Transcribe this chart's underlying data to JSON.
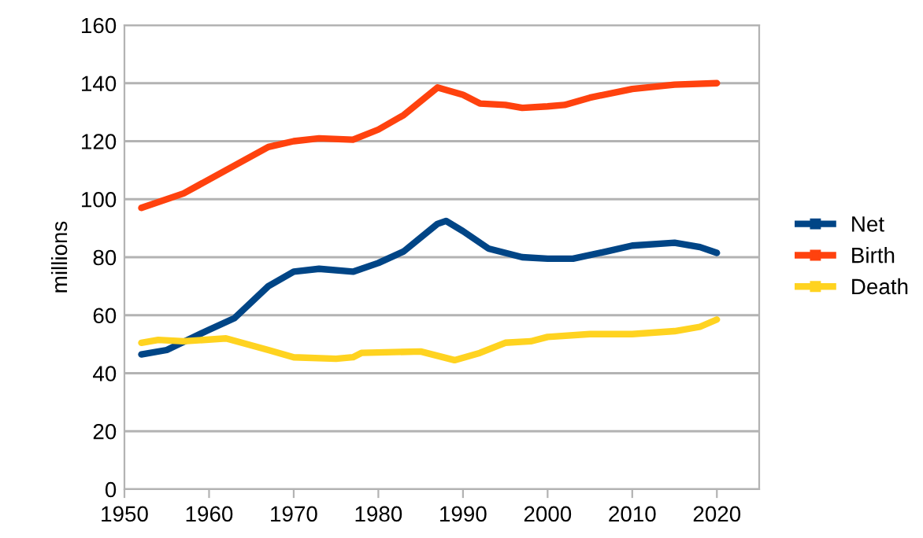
{
  "chart_data": {
    "type": "line",
    "ylabel": "millions",
    "xlim": [
      1950,
      2025
    ],
    "xticks": [
      1950,
      1960,
      1970,
      1980,
      1990,
      2000,
      2010,
      2020
    ],
    "ylim": [
      0,
      160
    ],
    "yticks": [
      0,
      20,
      40,
      60,
      80,
      100,
      120,
      140,
      160
    ],
    "grid": "y",
    "legend": "right",
    "line_style": "solid",
    "series": [
      {
        "name": "Net",
        "color": "#004586",
        "x": [
          1952,
          1955,
          1960,
          1963,
          1967,
          1970,
          1973,
          1977,
          1980,
          1983,
          1987,
          1988,
          1990,
          1993,
          1997,
          2000,
          2003,
          2007,
          2010,
          2015,
          2018,
          2020
        ],
        "values": [
          46.5,
          48,
          55,
          59,
          70,
          75,
          76,
          75,
          78,
          82,
          91.5,
          92.5,
          89,
          83,
          80,
          79.5,
          79.5,
          82,
          84,
          85,
          83.5,
          81.5
        ]
      },
      {
        "name": "Birth",
        "color": "#ff420e",
        "x": [
          1952,
          1957,
          1962,
          1967,
          1970,
          1973,
          1977,
          1980,
          1983,
          1987,
          1990,
          1992,
          1995,
          1997,
          2000,
          2002,
          2005,
          2010,
          2015,
          2020
        ],
        "values": [
          97,
          102,
          110,
          118,
          120,
          121,
          120.5,
          124,
          129,
          138.5,
          136,
          133,
          132.5,
          131.5,
          132,
          132.5,
          135,
          138,
          139.5,
          140
        ]
      },
      {
        "name": "Death",
        "color": "#ffd320",
        "x": [
          1952,
          1954,
          1957,
          1962,
          1967,
          1970,
          1975,
          1977,
          1978,
          1985,
          1987,
          1989,
          1992,
          1995,
          1998,
          2000,
          2005,
          2010,
          2015,
          2018,
          2020
        ],
        "values": [
          50.5,
          51.5,
          51,
          52,
          48,
          45.5,
          45,
          45.5,
          47,
          47.5,
          46,
          44.5,
          47,
          50.5,
          51,
          52.5,
          53.5,
          53.5,
          54.5,
          56,
          58.5
        ]
      }
    ]
  }
}
